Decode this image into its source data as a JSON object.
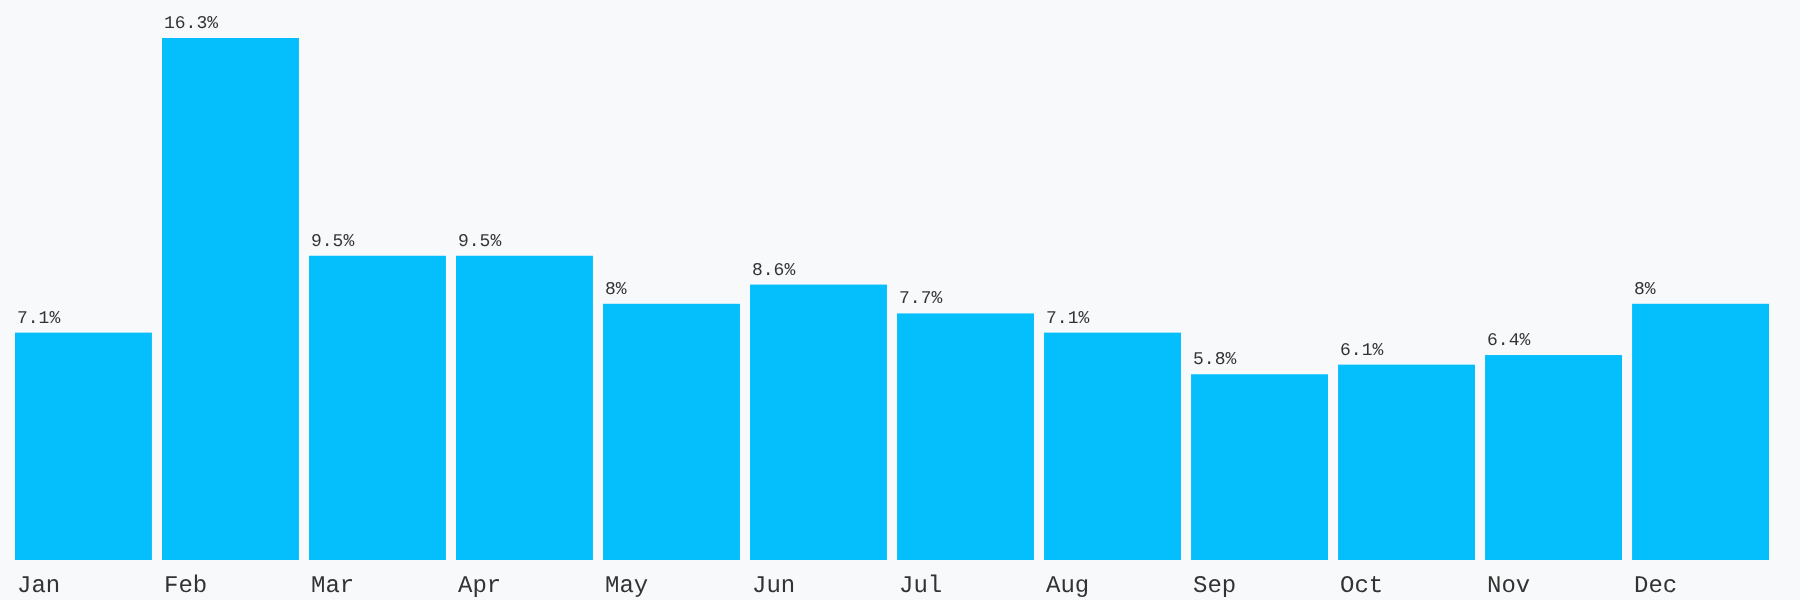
{
  "chart_data": {
    "type": "bar",
    "categories": [
      "Jan",
      "Feb",
      "Mar",
      "Apr",
      "May",
      "Jun",
      "Jul",
      "Aug",
      "Sep",
      "Oct",
      "Nov",
      "Dec"
    ],
    "values": [
      7.1,
      16.3,
      9.5,
      9.5,
      8,
      8.6,
      7.7,
      7.1,
      5.8,
      6.1,
      6.4,
      8
    ],
    "value_labels": [
      "7.1%",
      "16.3%",
      "9.5%",
      "9.5%",
      "8%",
      "8.6%",
      "7.7%",
      "7.1%",
      "5.8%",
      "6.1%",
      "6.4%",
      "8%"
    ],
    "color": "#05bffd"
  }
}
